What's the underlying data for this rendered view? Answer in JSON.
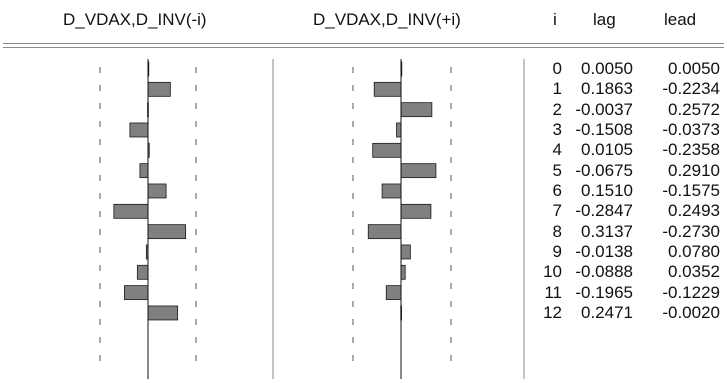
{
  "header": {
    "col_neg": "D_VDAX,D_INV(-i)",
    "col_pos": "D_VDAX,D_INV(+i)",
    "col_i": "i",
    "col_lag": "lag",
    "col_lead": "lead"
  },
  "rows": [
    {
      "i": "0",
      "lag": "0.0050",
      "lead": "0.0050"
    },
    {
      "i": "1",
      "lag": "0.1863",
      "lead": "-0.2234"
    },
    {
      "i": "2",
      "lag": "-0.0037",
      "lead": "0.2572"
    },
    {
      "i": "3",
      "lag": "-0.1508",
      "lead": "-0.0373"
    },
    {
      "i": "4",
      "lag": "0.0105",
      "lead": "-0.2358"
    },
    {
      "i": "5",
      "lag": "-0.0675",
      "lead": "0.2910"
    },
    {
      "i": "6",
      "lag": "0.1510",
      "lead": "-0.1575"
    },
    {
      "i": "7",
      "lag": "-0.2847",
      "lead": "0.2493"
    },
    {
      "i": "8",
      "lag": "0.3137",
      "lead": "-0.2730"
    },
    {
      "i": "9",
      "lag": "-0.0138",
      "lead": "0.0780"
    },
    {
      "i": "10",
      "lag": "-0.0888",
      "lead": "0.0352"
    },
    {
      "i": "11",
      "lag": "-0.1965",
      "lead": "-0.1229"
    },
    {
      "i": "12",
      "lag": "0.2471",
      "lead": "-0.0020"
    }
  ],
  "chart_data": {
    "type": "bar",
    "orientation": "horizontal",
    "categories": [
      "0",
      "1",
      "2",
      "3",
      "4",
      "5",
      "6",
      "7",
      "8",
      "9",
      "10",
      "11",
      "12"
    ],
    "series": [
      {
        "name": "D_VDAX,D_INV(-i)",
        "values": [
          0.005,
          0.1863,
          -0.0037,
          -0.1508,
          0.0105,
          -0.0675,
          0.151,
          -0.2847,
          0.3137,
          -0.0138,
          -0.0888,
          -0.1965,
          0.2471
        ]
      },
      {
        "name": "D_VDAX,D_INV(+i)",
        "values": [
          0.005,
          -0.2234,
          0.2572,
          -0.0373,
          -0.2358,
          0.291,
          -0.1575,
          0.2493,
          -0.273,
          0.078,
          0.0352,
          -0.1229,
          -0.002
        ]
      }
    ],
    "xlim": [
      -0.4,
      0.4
    ],
    "confidence_bounds": "dashed",
    "colors": {
      "bar": "#808080",
      "bar_edge": "#1a1a1a",
      "axis": "#111111",
      "bound": "#555555",
      "separator": "#8a8a8a"
    }
  }
}
